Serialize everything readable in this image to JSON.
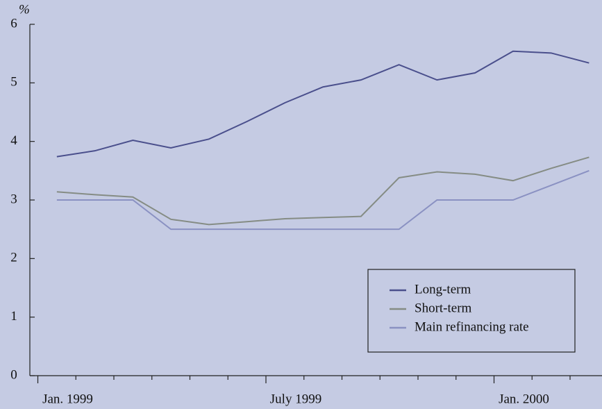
{
  "chart_data": {
    "type": "line",
    "ylabel": "%",
    "categories": [
      "Jan. 1999",
      null,
      null,
      null,
      null,
      null,
      "July 1999",
      null,
      null,
      null,
      null,
      null,
      "Jan. 2000",
      null,
      null
    ],
    "series": [
      {
        "name": "Long-term",
        "color": "#4a4f8c",
        "values": [
          3.74,
          3.84,
          4.02,
          3.89,
          4.04,
          4.34,
          4.66,
          4.93,
          5.05,
          5.31,
          5.05,
          5.17,
          5.54,
          5.51,
          5.34
        ]
      },
      {
        "name": "Short-term",
        "color": "#858c84",
        "values": [
          3.14,
          3.09,
          3.05,
          2.67,
          2.58,
          2.63,
          2.68,
          2.7,
          2.72,
          3.38,
          3.48,
          3.44,
          3.33,
          3.54,
          3.73
        ]
      },
      {
        "name": "Main refinancing rate",
        "color": "#8a91c2",
        "values": [
          3.0,
          3.0,
          3.0,
          2.5,
          2.5,
          2.5,
          2.5,
          2.5,
          2.5,
          2.5,
          3.0,
          3.0,
          3.0,
          3.25,
          3.5
        ]
      }
    ],
    "ylim": [
      0,
      6
    ],
    "yticks": [
      0,
      1,
      2,
      3,
      4,
      5,
      6
    ],
    "legend": "lower right"
  }
}
